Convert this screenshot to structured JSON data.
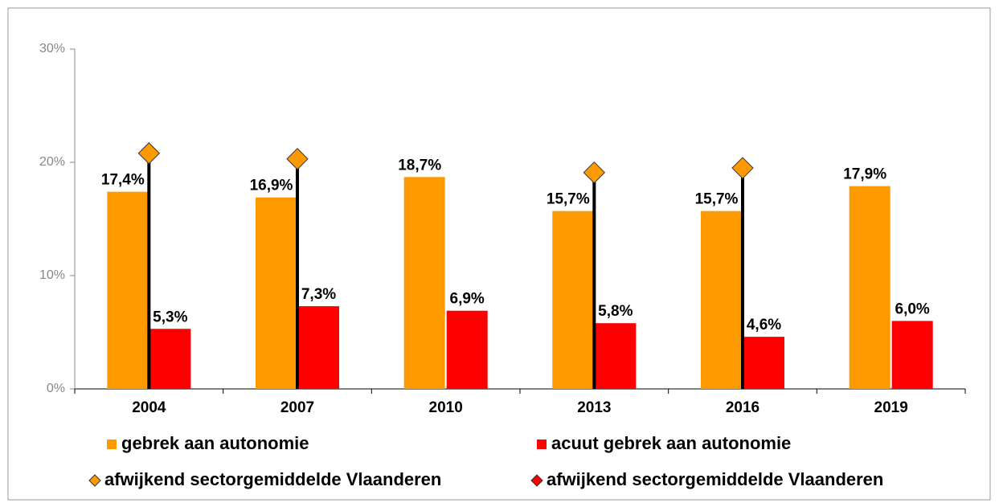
{
  "chart_data": {
    "type": "bar",
    "categories": [
      "2004",
      "2007",
      "2010",
      "2013",
      "2016",
      "2019"
    ],
    "ylim": [
      0,
      30
    ],
    "yticks": [
      {
        "value": 0,
        "label": "0%"
      },
      {
        "value": 10,
        "label": "10%"
      },
      {
        "value": 20,
        "label": "20%"
      },
      {
        "value": 30,
        "label": "30%"
      }
    ],
    "series": [
      {
        "name": "gebrek aan autonomie",
        "color": "#FF9900",
        "kind": "bar",
        "values": [
          17.4,
          16.9,
          18.7,
          15.7,
          15.7,
          17.9
        ],
        "value_labels": [
          "17,4%",
          "16,9%",
          "18,7%",
          "15,7%",
          "15,7%",
          "17,9%"
        ]
      },
      {
        "name": "acuut gebrek aan autonomie",
        "color": "#FF0000",
        "kind": "bar",
        "values": [
          5.3,
          7.3,
          6.9,
          5.8,
          4.6,
          6.0
        ],
        "value_labels": [
          "5,3%",
          "7,3%",
          "6,9%",
          "5,8%",
          "4,6%",
          "6,0%"
        ]
      },
      {
        "name": "afwijkend sectorgemiddelde Vlaanderen",
        "color": "#FF9900",
        "kind": "diamond",
        "values": [
          20.8,
          20.3,
          null,
          19.1,
          19.5,
          null
        ]
      },
      {
        "name": "afwijkend sectorgemiddelde Vlaanderen",
        "color": "#FF0000",
        "kind": "diamond",
        "values": [
          null,
          null,
          null,
          null,
          null,
          null
        ]
      }
    ]
  }
}
